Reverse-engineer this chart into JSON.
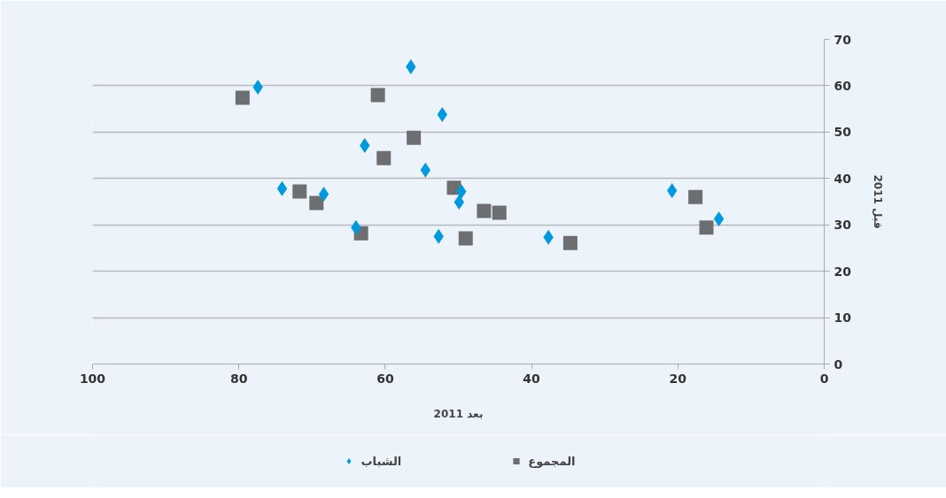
{
  "chart_data": {
    "type": "scatter",
    "xlabel": "بعد 2011",
    "ylabel": "قبل 2011",
    "xlim": [
      100,
      0
    ],
    "xticks": [
      100,
      80,
      60,
      40,
      20,
      0
    ],
    "ylim": [
      0,
      70
    ],
    "yticks": [
      0,
      10,
      20,
      30,
      40,
      50,
      60,
      70
    ],
    "grid": "y",
    "legend": "bottom",
    "series": [
      {
        "name": "الشباب",
        "color": "#0099dd",
        "marker": "diamond",
        "x": [
          77.4,
          56.5,
          52.2,
          62.8,
          54.5,
          74.1,
          68.4,
          49.6,
          49.9,
          64.0,
          52.7,
          37.7,
          20.8,
          14.4
        ],
        "values": [
          59.7,
          64.1,
          53.8,
          47.1,
          41.8,
          37.8,
          36.6,
          37.2,
          34.9,
          29.4,
          27.5,
          27.3,
          37.4,
          31.3
        ]
      },
      {
        "name": "المجموع",
        "color": "#6d6e71",
        "marker": "square",
        "x": [
          79.5,
          61.0,
          56.1,
          60.2,
          50.6,
          71.7,
          69.4,
          46.5,
          44.4,
          63.3,
          49.0,
          34.7,
          17.6,
          16.1
        ],
        "values": [
          57.4,
          58.0,
          48.8,
          44.4,
          38.0,
          37.2,
          34.7,
          33.0,
          32.6,
          28.2,
          27.1,
          26.1,
          36.0,
          29.4
        ]
      }
    ]
  }
}
